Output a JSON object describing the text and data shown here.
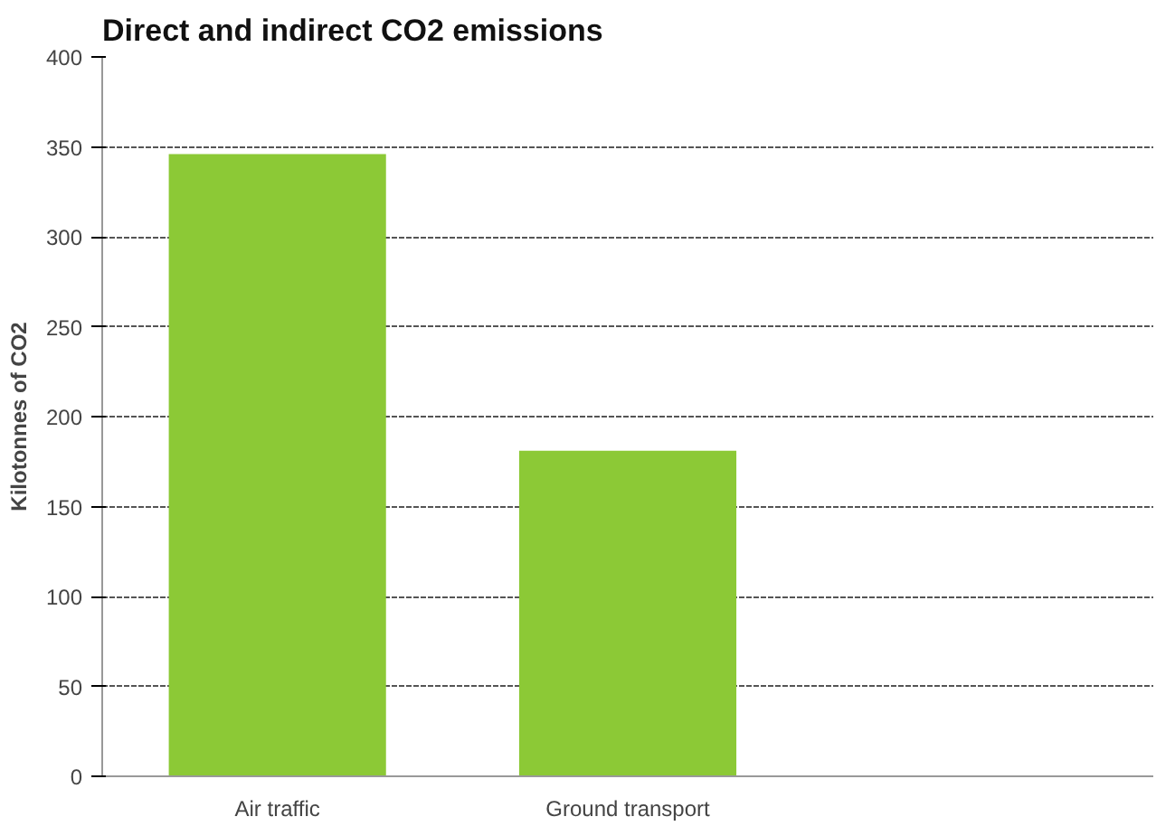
{
  "chart_data": {
    "type": "bar",
    "title": "Direct and indirect CO2 emissions",
    "ylabel": "Kilotonnes of CO2",
    "categories": [
      "Air traffic",
      "Ground transport",
      null
    ],
    "values": [
      346,
      181,
      null
    ],
    "color": "#8cc936",
    "ylim": [
      0,
      400
    ],
    "yticks": [
      0,
      50,
      100,
      150,
      200,
      250,
      300,
      350,
      400
    ],
    "grid": "y"
  }
}
